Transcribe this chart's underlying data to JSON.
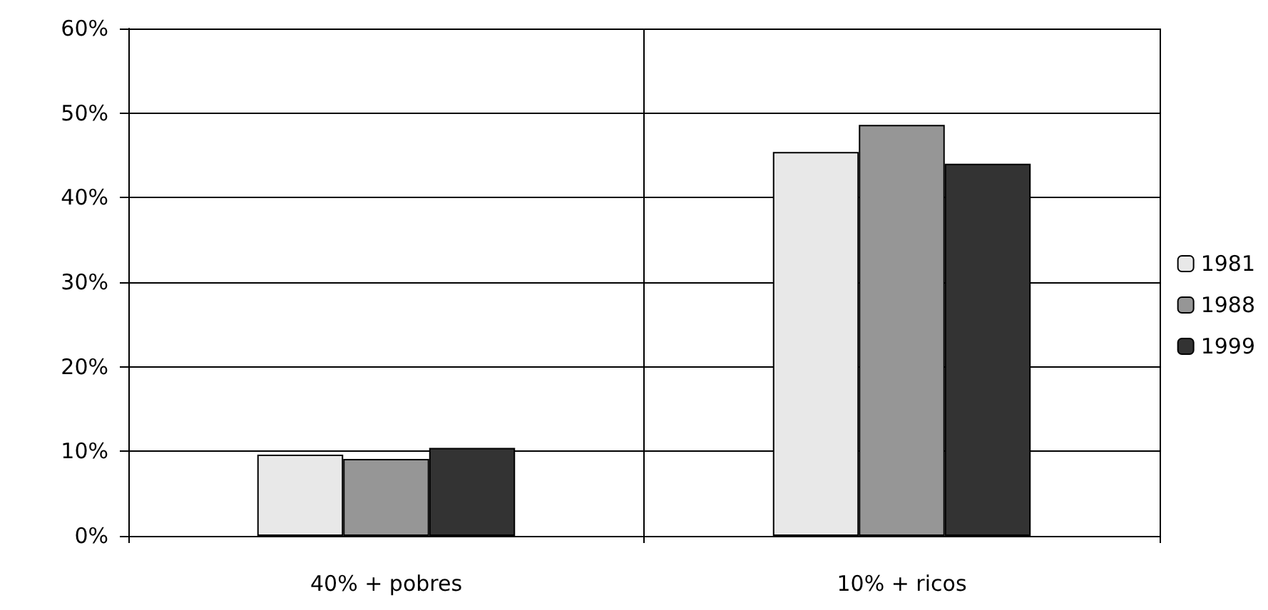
{
  "chart_data": {
    "type": "bar",
    "categories": [
      "40% + pobres",
      "10% + ricos"
    ],
    "series": [
      {
        "name": "1981",
        "color": "#e8e8e8",
        "values": [
          9.6,
          45.4
        ]
      },
      {
        "name": "1988",
        "color": "#969696",
        "values": [
          9.1,
          48.6
        ]
      },
      {
        "name": "1999",
        "color": "#333333",
        "values": [
          10.4,
          44.0
        ]
      }
    ],
    "ylim": [
      0,
      60
    ],
    "yticks": [
      {
        "value": 0,
        "label": "0%"
      },
      {
        "value": 10,
        "label": "10%"
      },
      {
        "value": 20,
        "label": "20%"
      },
      {
        "value": 30,
        "label": "30%"
      },
      {
        "value": 40,
        "label": "40%"
      },
      {
        "value": 50,
        "label": "50%"
      },
      {
        "value": 60,
        "label": "60%"
      }
    ],
    "grid": true,
    "legend": "right"
  }
}
